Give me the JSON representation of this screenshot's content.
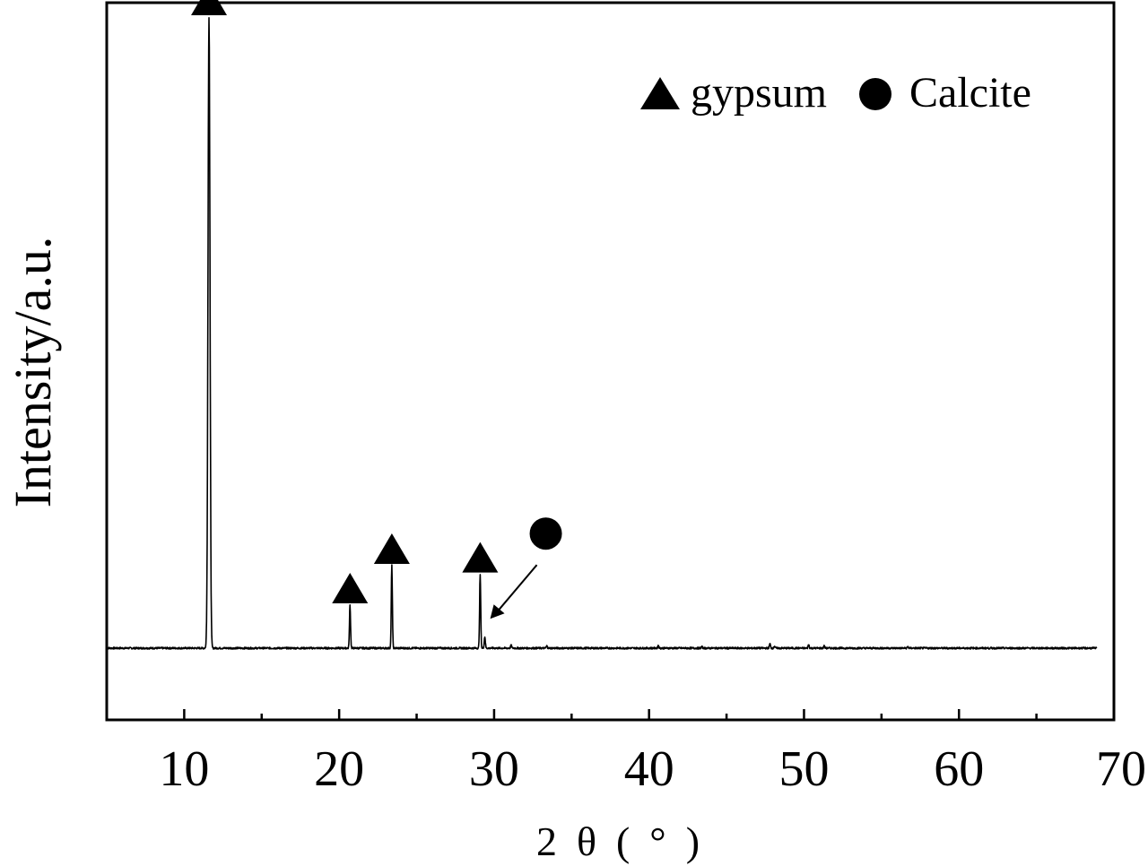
{
  "chart_data": {
    "type": "line",
    "xlabel": "2θ(°)",
    "ylabel": "Intensity/a.u.",
    "xlim": [
      5,
      70
    ],
    "ylim": [
      0,
      100
    ],
    "x_ticks": [
      10,
      20,
      30,
      40,
      50,
      60,
      70
    ],
    "y_ticks_shown": false,
    "grid": false,
    "legend_position": "top-right",
    "legend": [
      {
        "marker": "triangle",
        "label": "gypsum"
      },
      {
        "marker": "circle",
        "label": "Calcite"
      }
    ],
    "series": [
      {
        "color": "#000000",
        "baseline": 10,
        "peaks": [
          {
            "x": 11.6,
            "y": 98.0
          },
          {
            "x": 20.7,
            "y": 16.0
          },
          {
            "x": 23.4,
            "y": 21.5
          },
          {
            "x": 29.1,
            "y": 20.3
          },
          {
            "x": 29.4,
            "y": 11.6
          },
          {
            "x": 31.1,
            "y": 10.4
          },
          {
            "x": 33.4,
            "y": 10.3
          },
          {
            "x": 40.6,
            "y": 10.4
          },
          {
            "x": 43.4,
            "y": 10.2
          },
          {
            "x": 47.8,
            "y": 10.6
          },
          {
            "x": 48.1,
            "y": 10.3
          },
          {
            "x": 50.3,
            "y": 10.5
          },
          {
            "x": 51.3,
            "y": 10.3
          },
          {
            "x": 56.7,
            "y": 10.2
          }
        ]
      }
    ],
    "annotations": [
      {
        "marker": "triangle",
        "phase": "gypsum",
        "x": 11.6,
        "y": 98.0
      },
      {
        "marker": "triangle",
        "phase": "gypsum",
        "x": 20.7,
        "y": 16.0
      },
      {
        "marker": "triangle",
        "phase": "gypsum",
        "x": 23.4,
        "y": 21.5
      },
      {
        "marker": "triangle",
        "phase": "gypsum",
        "x": 29.1,
        "y": 20.3
      },
      {
        "marker": "circle",
        "phase": "Calcite",
        "x": 29.4,
        "y": 11.6,
        "arrow": true
      }
    ]
  }
}
